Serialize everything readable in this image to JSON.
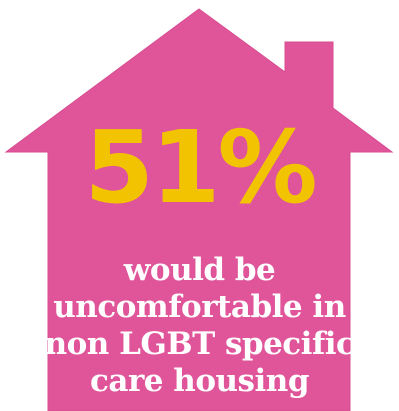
{
  "colors": {
    "background": "#ffffff",
    "house_fill": "#e0559a",
    "house_edge": "#d74c91",
    "stat_color": "#f2c300",
    "caption_color": "#ffffff"
  },
  "infographic": {
    "shape": "house-icon",
    "stat_value": "51%",
    "caption_lines": [
      "would be",
      "uncomfortable in",
      "non LGBT specific",
      "care housing"
    ]
  }
}
